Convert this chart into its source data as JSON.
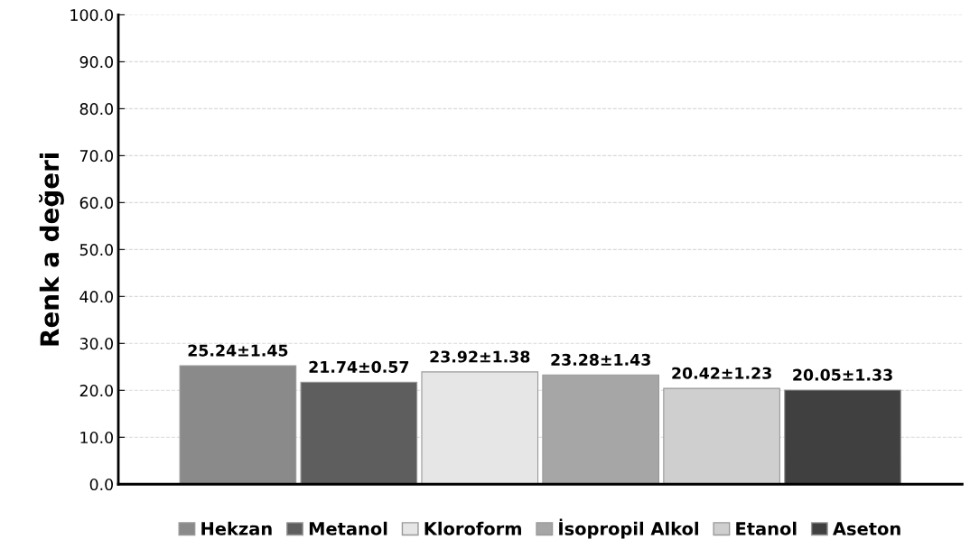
{
  "chart_data": {
    "type": "bar",
    "ylabel": "Renk a değeri",
    "categories": [
      null
    ],
    "series": [
      {
        "name": "Hekzan",
        "color": "#8a8a8a",
        "values": [
          25.24
        ],
        "value_labels": [
          "25.24±1.45"
        ]
      },
      {
        "name": "Metanol",
        "color": "#5e5e5e",
        "values": [
          21.74
        ],
        "value_labels": [
          "21.74±0.57"
        ]
      },
      {
        "name": "Kloroform",
        "color": "#e6e6e6",
        "values": [
          23.92
        ],
        "value_labels": [
          "23.92±1.38"
        ]
      },
      {
        "name": "İsopropil Alkol",
        "color": "#a6a6a6",
        "values": [
          23.28
        ],
        "value_labels": [
          "23.28±1.43"
        ]
      },
      {
        "name": "Etanol",
        "color": "#cfcfcf",
        "values": [
          20.42
        ],
        "value_labels": [
          "20.42±1.23"
        ]
      },
      {
        "name": "Aseton",
        "color": "#404040",
        "values": [
          20.05
        ],
        "value_labels": [
          "20.05±1.33"
        ]
      }
    ],
    "ylim": [
      0,
      100
    ],
    "yticks": [
      {
        "value": 0,
        "label": "0.0"
      },
      {
        "value": 10,
        "label": "10.0"
      },
      {
        "value": 20,
        "label": "20.0"
      },
      {
        "value": 30,
        "label": "30.0"
      },
      {
        "value": 40,
        "label": "40.0"
      },
      {
        "value": 50,
        "label": "50.0"
      },
      {
        "value": 60,
        "label": "60.0"
      },
      {
        "value": 70,
        "label": "70.0"
      },
      {
        "value": 80,
        "label": "80.0"
      },
      {
        "value": 90,
        "label": "90.0"
      },
      {
        "value": 100,
        "label": "100.0"
      }
    ],
    "grid": "y",
    "legend": "bottom"
  }
}
